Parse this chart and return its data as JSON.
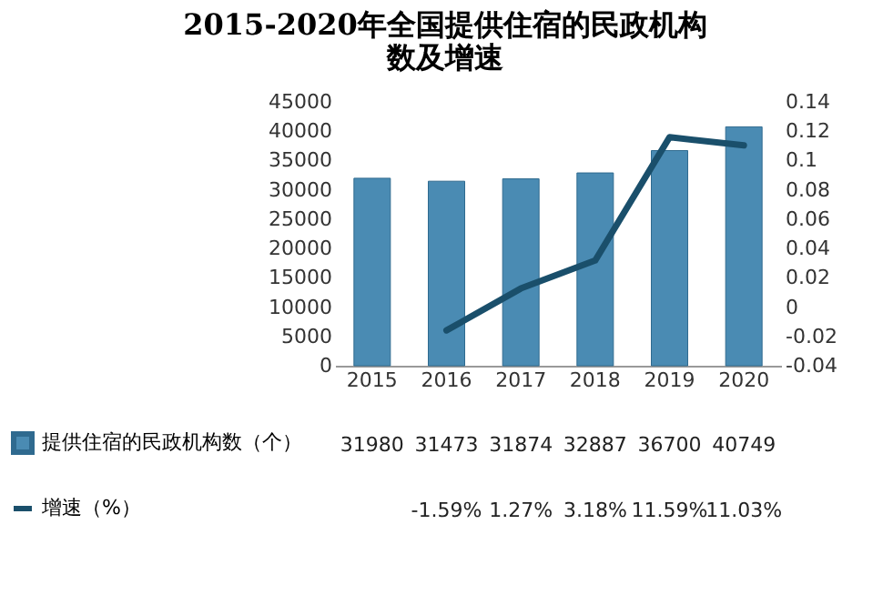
{
  "chart_data": {
    "type": "bar",
    "title": "2015-2020年全国提供住宿的民政机构数及增速",
    "categories": [
      "2015",
      "2016",
      "2017",
      "2018",
      "2019",
      "2020"
    ],
    "series": [
      {
        "name": "提供住宿的民政机构数（个）",
        "color": "#4a8bb3",
        "values": [
          31980,
          31473,
          31874,
          32887,
          36700,
          40749
        ],
        "value_labels": [
          "31980",
          "31473",
          "31874",
          "32887",
          "36700",
          "40749"
        ]
      },
      {
        "name": "增速（%）",
        "type": "line",
        "axis": "y2",
        "color": "#1a4f6b",
        "values": [
          null,
          -0.0159,
          0.0127,
          0.0318,
          0.1159,
          0.1103
        ],
        "value_labels": [
          null,
          "-1.59%",
          "1.27%",
          "3.18%",
          "11.59%",
          "11.03%"
        ]
      }
    ],
    "ylim": [
      0,
      45000
    ],
    "yticks": [
      0,
      5000,
      10000,
      15000,
      20000,
      25000,
      30000,
      35000,
      40000,
      45000
    ],
    "y2lim": [
      -0.04,
      0.14
    ],
    "y2ticks": [
      -0.04,
      -0.02,
      0,
      0.02,
      0.04,
      0.06,
      0.08,
      0.1,
      0.12,
      0.14
    ],
    "legend": "bottom left"
  }
}
